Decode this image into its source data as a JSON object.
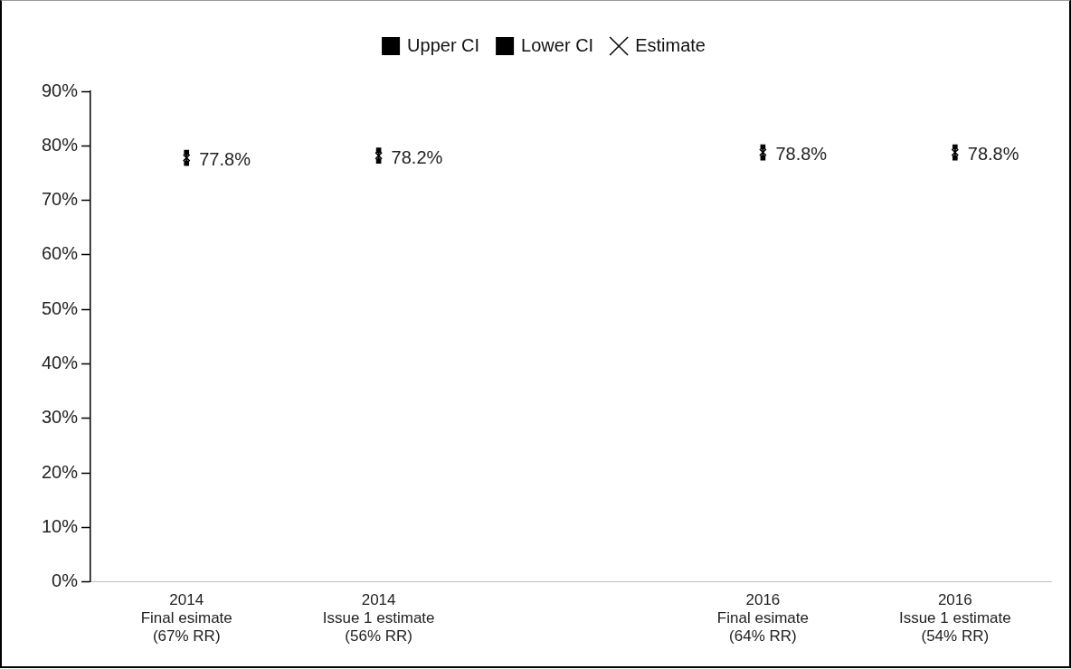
{
  "chart_data": {
    "type": "scatter",
    "categories": [
      "2014\nFinal esimate\n(67% RR)",
      "2014\nIssue 1 estimate\n(56% RR)",
      null,
      "2016\nFinal esimate\n(64% RR)",
      "2016\nIssue 1 estimate\n(54% RR)"
    ],
    "series": [
      {
        "name": "Upper CI",
        "color": "#000000",
        "marker": "square",
        "values": [
          78.8,
          79.2,
          null,
          79.8,
          79.8
        ]
      },
      {
        "name": "Lower CI",
        "color": "#000000",
        "marker": "square",
        "values": [
          76.8,
          77.2,
          null,
          77.8,
          77.8
        ]
      },
      {
        "name": "Estimate",
        "color": "#000000",
        "marker": "cross",
        "values": [
          77.8,
          78.2,
          null,
          78.8,
          78.8
        ],
        "value_labels": [
          "77.8%",
          "78.2%",
          null,
          "78.8%",
          "78.8%"
        ]
      }
    ],
    "ylim": [
      0,
      90
    ],
    "yticks": [
      {
        "value": 0,
        "label": "0%"
      },
      {
        "value": 10,
        "label": "10%"
      },
      {
        "value": 20,
        "label": "20%"
      },
      {
        "value": 30,
        "label": "30%"
      },
      {
        "value": 40,
        "label": "40%"
      },
      {
        "value": 50,
        "label": "50%"
      },
      {
        "value": 60,
        "label": "60%"
      },
      {
        "value": 70,
        "label": "70%"
      },
      {
        "value": 80,
        "label": "80%"
      },
      {
        "value": 90,
        "label": "90%"
      }
    ],
    "grid": false,
    "legend": "top"
  }
}
